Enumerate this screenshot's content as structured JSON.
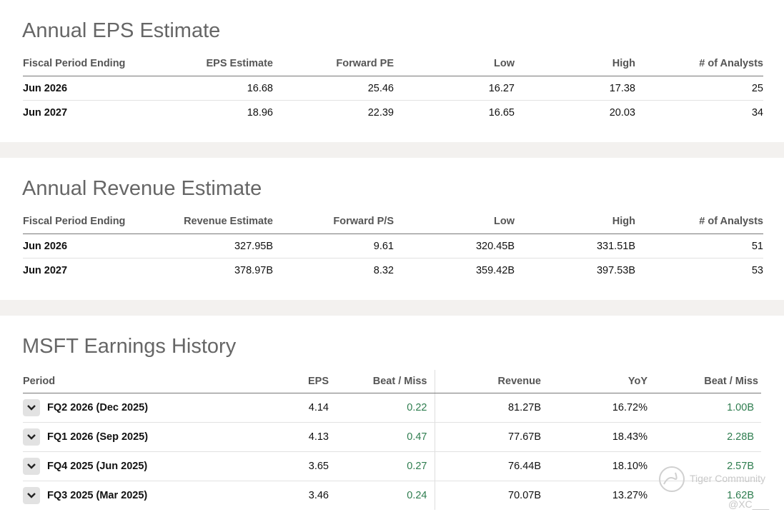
{
  "eps_section": {
    "title": "Annual EPS Estimate",
    "columns": [
      "Fiscal Period Ending",
      "EPS Estimate",
      "Forward PE",
      "Low",
      "High",
      "# of Analysts"
    ],
    "rows": [
      [
        "Jun 2026",
        "16.68",
        "25.46",
        "16.27",
        "17.38",
        "25"
      ],
      [
        "Jun 2027",
        "18.96",
        "22.39",
        "16.65",
        "20.03",
        "34"
      ]
    ]
  },
  "revenue_section": {
    "title": "Annual Revenue Estimate",
    "columns": [
      "Fiscal Period Ending",
      "Revenue Estimate",
      "Forward P/S",
      "Low",
      "High",
      "# of Analysts"
    ],
    "rows": [
      [
        "Jun 2026",
        "327.95B",
        "9.61",
        "320.45B",
        "331.51B",
        "51"
      ],
      [
        "Jun 2027",
        "378.97B",
        "8.32",
        "359.42B",
        "397.53B",
        "53"
      ]
    ]
  },
  "history_section": {
    "title": "MSFT Earnings History",
    "columns": [
      "Period",
      "EPS",
      "Beat / Miss",
      "Revenue",
      "YoY",
      "Beat / Miss"
    ],
    "rows": [
      [
        "FQ2 2026 (Dec 2025)",
        "4.14",
        "0.22",
        "81.27B",
        "16.72%",
        "1.00B"
      ],
      [
        "FQ1 2026 (Sep 2025)",
        "4.13",
        "0.47",
        "77.67B",
        "18.43%",
        "2.28B"
      ],
      [
        "FQ4 2025 (Jun 2025)",
        "3.65",
        "0.27",
        "76.44B",
        "18.10%",
        "2.57B"
      ],
      [
        "FQ3 2025 (Mar 2025)",
        "3.46",
        "0.24",
        "70.07B",
        "13.27%",
        "1.62B"
      ]
    ]
  },
  "colors": {
    "beat_positive": "#2e7d4f",
    "title": "#666666",
    "separator": "#f3f1ef"
  },
  "watermark": {
    "brand": "Tiger Community",
    "user": "@XC___"
  }
}
